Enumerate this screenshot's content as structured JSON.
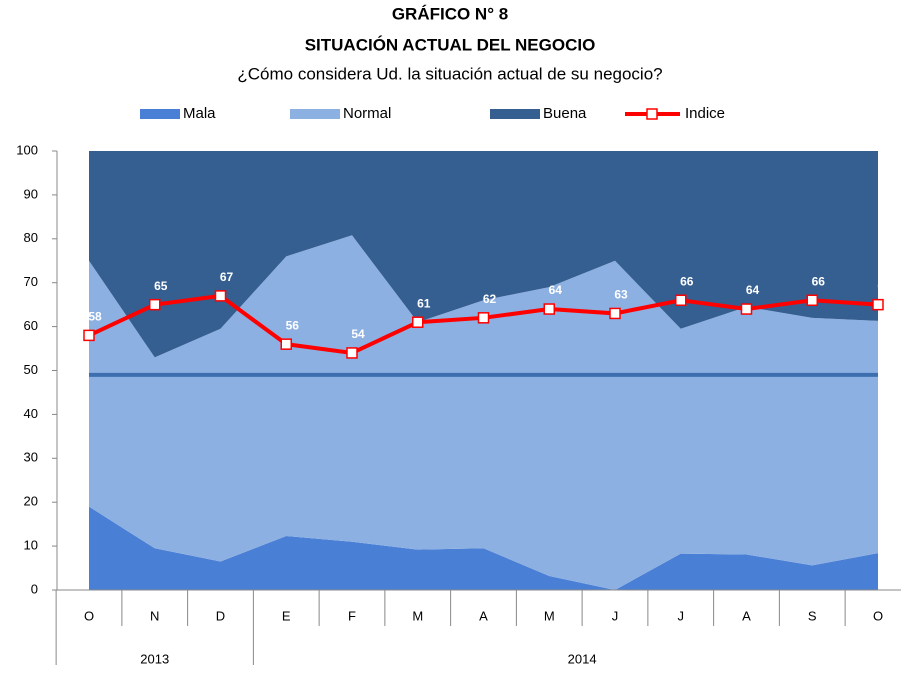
{
  "chart_data": {
    "type": "stacked_area_line",
    "title": "GRÁFICO N° 8",
    "subtitle": "SITUACIÓN ACTUAL DEL NEGOCIO",
    "question": "¿Cómo considera Ud. la situación actual de su negocio?",
    "categories": [
      "O",
      "N",
      "D",
      "E",
      "F",
      "M",
      "A",
      "M",
      "J",
      "J",
      "A",
      "S",
      "O"
    ],
    "years": [
      "2013",
      null,
      null,
      "2014",
      null,
      null,
      null,
      null,
      null,
      null,
      null,
      null,
      null
    ],
    "series": [
      {
        "name": "Mala",
        "color": "#4a7fd6",
        "values": [
          19,
          9.5,
          6.5,
          12.3,
          11,
          9.2,
          9.5,
          3.2,
          0,
          8.3,
          8.1,
          5.6,
          8.4
        ]
      },
      {
        "name": "Normal",
        "color": "#8db0e2",
        "values": [
          56,
          43.5,
          53,
          63.7,
          69.8,
          51.8,
          56.5,
          65.8,
          75,
          51.2,
          56.4,
          56.4,
          52.9
        ]
      },
      {
        "name": "Buena",
        "color": "#355f91",
        "values": [
          25,
          47,
          40.5,
          24,
          19.2,
          39,
          34,
          31,
          25,
          40.5,
          35.5,
          38,
          38.7
        ]
      },
      {
        "name": "Indice",
        "type": "line",
        "color": "#ff0000",
        "values": [
          58,
          65,
          67,
          56,
          54,
          61,
          62,
          64,
          63,
          66,
          64,
          66,
          65
        ]
      }
    ],
    "reference_line": {
      "value": 49,
      "color": "#3d6fb0"
    },
    "ylim": [
      0,
      100
    ],
    "yticks": [
      0,
      10,
      20,
      30,
      40,
      50,
      60,
      70,
      80,
      90,
      100
    ],
    "grid": false,
    "legend": "top"
  }
}
